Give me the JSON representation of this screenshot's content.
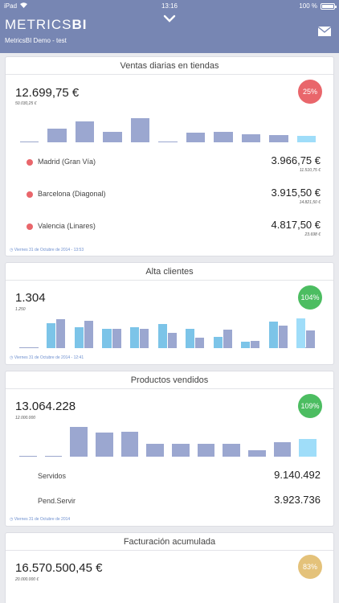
{
  "status": {
    "device": "iPad",
    "time": "13:16",
    "battery": "100 %"
  },
  "header": {
    "brand_light": "METRICS",
    "brand_bold": "BI",
    "subtitle": "MetricsBI Demo - test"
  },
  "colors": {
    "header": "#7786b3",
    "bar": "#9ba7d0",
    "bar_cyan": "#7cc4e8",
    "bar_last": "#9fddf9",
    "red": "#e9666b",
    "green": "#4cbd61",
    "amber": "#e4c27a"
  },
  "cards": [
    {
      "title": "Ventas diarias en tiendas",
      "value": "12.699,75 €",
      "target": "50.030,25 €",
      "badge": "25%",
      "bars": [
        0,
        0.35,
        0.55,
        0.27,
        0.63,
        0.02,
        0.24,
        0.27,
        0.2,
        0.18,
        0.17
      ],
      "rows": [
        {
          "name": "Madrid (Gran Vía)",
          "value": "3.966,75 €",
          "sub": "11.510,75 €"
        },
        {
          "name": "Barcelona (Diagonal)",
          "value": "3.915,50 €",
          "sub": "14.821,50 €"
        },
        {
          "name": "Valencia (Linares)",
          "value": "4.817,50 €",
          "sub": "23.698 €"
        }
      ],
      "footer": "Viernes 31 de Octubre de 2014 - 13:53"
    },
    {
      "title": "Alta clientes",
      "value": "1.304",
      "target": "1.250",
      "badge": "104%",
      "pairs": [
        [
          0.65,
          0.75
        ],
        [
          0.55,
          0.7
        ],
        [
          0.5,
          0.5
        ],
        [
          0.55,
          0.5
        ],
        [
          0.62,
          0.4
        ],
        [
          0.5,
          0.28
        ],
        [
          0.3,
          0.48
        ],
        [
          0.16,
          0.18
        ],
        [
          0.68,
          0.58
        ],
        [
          0.7,
          0.45
        ]
      ],
      "last": 0.78,
      "footer": "Viernes 31 de Octubre de 2014 - 12:41"
    },
    {
      "title": "Productos vendidos",
      "value": "13.064.228",
      "target": "12.000.000",
      "badge": "109%",
      "bars": [
        0,
        0,
        0.78,
        0.62,
        0.64,
        0.33,
        0.33,
        0.33,
        0.33,
        0.17,
        0.38,
        0.46
      ],
      "rows": [
        {
          "name": "Servidos",
          "value": "9.140.492"
        },
        {
          "name": "Pend.Servir",
          "value": "3.923.736"
        }
      ],
      "footer": "Viernes 31 de Octubre de 2014"
    },
    {
      "title": "Facturación acumulada",
      "value": "16.570.500,45 €",
      "target": "20.000.000 €",
      "badge": "83%",
      "bars": [
        0,
        0,
        0.15,
        0.17,
        0.35,
        0.14,
        0.18,
        0.22,
        0.2,
        0.22,
        0.25
      ]
    }
  ]
}
